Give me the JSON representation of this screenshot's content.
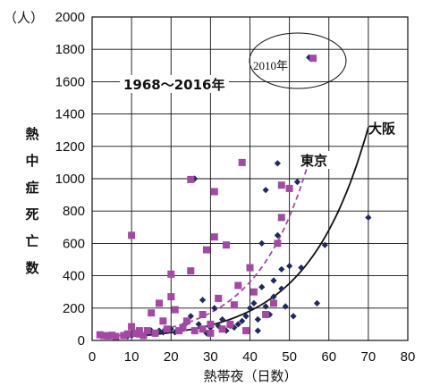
{
  "chart_data": {
    "type": "scatter",
    "xlabel": "熱帯夜（日数）",
    "ylabel": "熱中症死亡数",
    "yunit": "（人）",
    "xlim": [
      0,
      80
    ],
    "ylim": [
      0,
      2000
    ],
    "xticks": [
      "0",
      "10",
      "20",
      "30",
      "40",
      "50",
      "60",
      "70",
      "80"
    ],
    "yticks": [
      "0",
      "200",
      "400",
      "600",
      "800",
      "1000",
      "1200",
      "1400",
      "1600",
      "1800",
      "2000"
    ],
    "grid": true,
    "annotations": {
      "period": "1968～2016年",
      "highlight": "2010年",
      "tokyo": "東京",
      "osaka": "大阪"
    },
    "colors": {
      "tokyo": "#a349a4",
      "osaka": "#1f2a5a"
    },
    "series": [
      {
        "name": "東京",
        "marker": "square",
        "color": "#a349a4",
        "points": [
          [
            2,
            35
          ],
          [
            3,
            30
          ],
          [
            4,
            28
          ],
          [
            5,
            32
          ],
          [
            6,
            25
          ],
          [
            8,
            30
          ],
          [
            9,
            40
          ],
          [
            10,
            650
          ],
          [
            10,
            85
          ],
          [
            11,
            45
          ],
          [
            12,
            40
          ],
          [
            12,
            60
          ],
          [
            13,
            30
          ],
          [
            14,
            60
          ],
          [
            15,
            170
          ],
          [
            16,
            45
          ],
          [
            17,
            230
          ],
          [
            18,
            120
          ],
          [
            19,
            70
          ],
          [
            20,
            410
          ],
          [
            20,
            270
          ],
          [
            21,
            190
          ],
          [
            22,
            60
          ],
          [
            23,
            80
          ],
          [
            24,
            120
          ],
          [
            25,
            430
          ],
          [
            25,
            995
          ],
          [
            26,
            60
          ],
          [
            28,
            70
          ],
          [
            28,
            160
          ],
          [
            29,
            560
          ],
          [
            30,
            100
          ],
          [
            30,
            45
          ],
          [
            31,
            920
          ],
          [
            31,
            640
          ],
          [
            32,
            260
          ],
          [
            33,
            70
          ],
          [
            34,
            590
          ],
          [
            35,
            100
          ],
          [
            36,
            220
          ],
          [
            37,
            340
          ],
          [
            38,
            1100
          ],
          [
            39,
            60
          ],
          [
            40,
            450
          ],
          [
            41,
            300
          ],
          [
            44,
            160
          ],
          [
            46,
            230
          ],
          [
            47,
            600
          ],
          [
            48,
            760
          ],
          [
            48,
            960
          ],
          [
            50,
            940
          ],
          [
            56,
            1745
          ]
        ]
      },
      {
        "name": "大阪",
        "marker": "diamond",
        "color": "#1f2a5a",
        "points": [
          [
            9,
            25
          ],
          [
            10,
            30
          ],
          [
            12,
            40
          ],
          [
            14,
            45
          ],
          [
            15,
            60
          ],
          [
            16,
            40
          ],
          [
            17,
            60
          ],
          [
            18,
            50
          ],
          [
            20,
            70
          ],
          [
            21,
            50
          ],
          [
            22,
            60
          ],
          [
            23,
            90
          ],
          [
            24,
            110
          ],
          [
            25,
            150
          ],
          [
            26,
            1000
          ],
          [
            27,
            100
          ],
          [
            28,
            250
          ],
          [
            29,
            45
          ],
          [
            30,
            80
          ],
          [
            31,
            200
          ],
          [
            32,
            90
          ],
          [
            33,
            130
          ],
          [
            34,
            60
          ],
          [
            35,
            90
          ],
          [
            36,
            80
          ],
          [
            37,
            100
          ],
          [
            38,
            120
          ],
          [
            39,
            150
          ],
          [
            40,
            200
          ],
          [
            41,
            230
          ],
          [
            42,
            130
          ],
          [
            42,
            60
          ],
          [
            43,
            330
          ],
          [
            43,
            600
          ],
          [
            44,
            930
          ],
          [
            44,
            210
          ],
          [
            45,
            160
          ],
          [
            46,
            370
          ],
          [
            46,
            270
          ],
          [
            47,
            650
          ],
          [
            47,
            1095
          ],
          [
            48,
            440
          ],
          [
            48,
            320
          ],
          [
            49,
            210
          ],
          [
            50,
            460
          ],
          [
            51,
            150
          ],
          [
            52,
            980
          ],
          [
            53,
            450
          ],
          [
            55,
            1750
          ],
          [
            57,
            230
          ],
          [
            59,
            590
          ],
          [
            70,
            760
          ]
        ]
      }
    ],
    "curves": [
      {
        "name": "東京",
        "style": "dashed",
        "color": "#a349a4",
        "x0": 2,
        "x1": 55,
        "a": 18,
        "b": 0.075
      },
      {
        "name": "大阪",
        "style": "solid",
        "color": "#111111",
        "x0": 8,
        "x1": 70,
        "a": 13,
        "b": 0.066
      }
    ]
  }
}
